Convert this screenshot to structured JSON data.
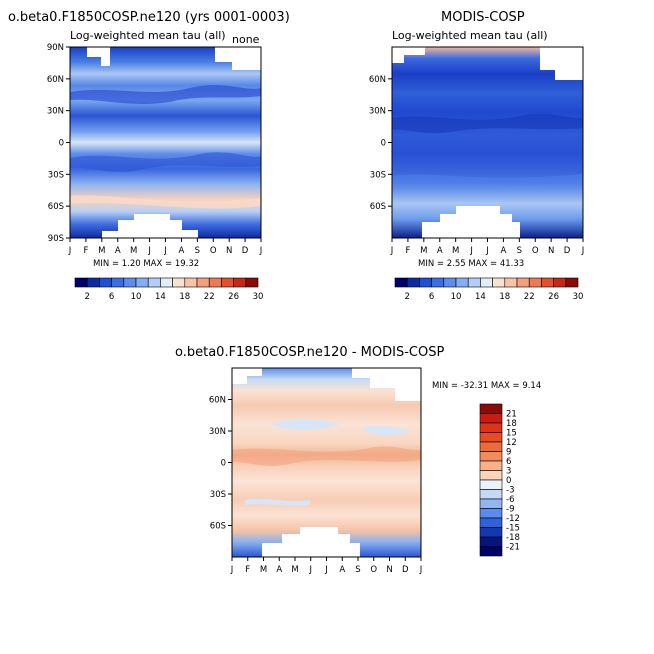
{
  "chart_data": [
    {
      "type": "heatmap",
      "title": "o.beta0.F1850COSP.ne120 (yrs 0001-0003)",
      "subtitle": "Log-weighted mean tau (all)",
      "corner_label": "none",
      "x_ticks": [
        "J",
        "F",
        "M",
        "A",
        "M",
        "J",
        "J",
        "A",
        "S",
        "O",
        "N",
        "D",
        "J"
      ],
      "y_ticks": [
        "90N",
        "60N",
        "30N",
        "0",
        "30S",
        "60S",
        "90S"
      ],
      "ylim": [
        -90,
        90
      ],
      "min_label": "MIN =    1.20 MAX =   19.32",
      "min": 1.2,
      "max": 19.32,
      "colorbar_labels": [
        "2",
        "6",
        "10",
        "14",
        "18",
        "22",
        "26",
        "30"
      ],
      "colorbar_colors": [
        "#00006b",
        "#0a2aa8",
        "#1d4fd8",
        "#3a6ee6",
        "#5b8def",
        "#84aef3",
        "#b4cdf6",
        "#e2edf8",
        "#fbe1d2",
        "#f7c3a6",
        "#f3a07c",
        "#ee7a54",
        "#e44f30",
        "#c92618",
        "#8c0a08"
      ]
    },
    {
      "type": "heatmap",
      "title": "MODIS-COSP",
      "subtitle": "Log-weighted mean tau (all)",
      "x_ticks": [
        "J",
        "F",
        "M",
        "A",
        "M",
        "J",
        "J",
        "A",
        "S",
        "O",
        "N",
        "D",
        "J"
      ],
      "y_ticks": [
        "60N",
        "30N",
        "0",
        "30S",
        "60S"
      ],
      "ylim": [
        -90,
        90
      ],
      "min_label": "MIN =    2.55 MAX =   41.33",
      "min": 2.55,
      "max": 41.33,
      "colorbar_labels": [
        "2",
        "6",
        "10",
        "14",
        "18",
        "22",
        "26",
        "30"
      ],
      "colorbar_colors": [
        "#00006b",
        "#0a2aa8",
        "#1d4fd8",
        "#3a6ee6",
        "#5b8def",
        "#84aef3",
        "#b4cdf6",
        "#e2edf8",
        "#fbe1d2",
        "#f7c3a6",
        "#f3a07c",
        "#ee7a54",
        "#e44f30",
        "#c92618",
        "#8c0a08"
      ]
    },
    {
      "type": "heatmap",
      "title": "o.beta0.F1850COSP.ne120 - MODIS-COSP",
      "x_ticks": [
        "J",
        "F",
        "M",
        "A",
        "M",
        "J",
        "J",
        "A",
        "S",
        "O",
        "N",
        "D",
        "J"
      ],
      "y_ticks": [
        "60N",
        "30N",
        "0",
        "30S",
        "60S"
      ],
      "ylim": [
        -90,
        90
      ],
      "min_label": "MIN = -32.31 MAX =    9.14",
      "min": -32.31,
      "max": 9.14,
      "colorbar_labels": [
        "21",
        "18",
        "15",
        "12",
        "9",
        "6",
        "3",
        "0",
        "-3",
        "-6",
        "-9",
        "-12",
        "-15",
        "-18",
        "-21"
      ],
      "colorbar_colors": [
        "#8c0a08",
        "#c81c10",
        "#dc3418",
        "#e84a22",
        "#ef6a3a",
        "#f38c5c",
        "#f6b08a",
        "#f9d3bd",
        "#eaf2fb",
        "#c4d9f5",
        "#93b6ef",
        "#5b8cea",
        "#2e62dc",
        "#1437b4",
        "#06157a",
        "#00006b"
      ]
    }
  ]
}
